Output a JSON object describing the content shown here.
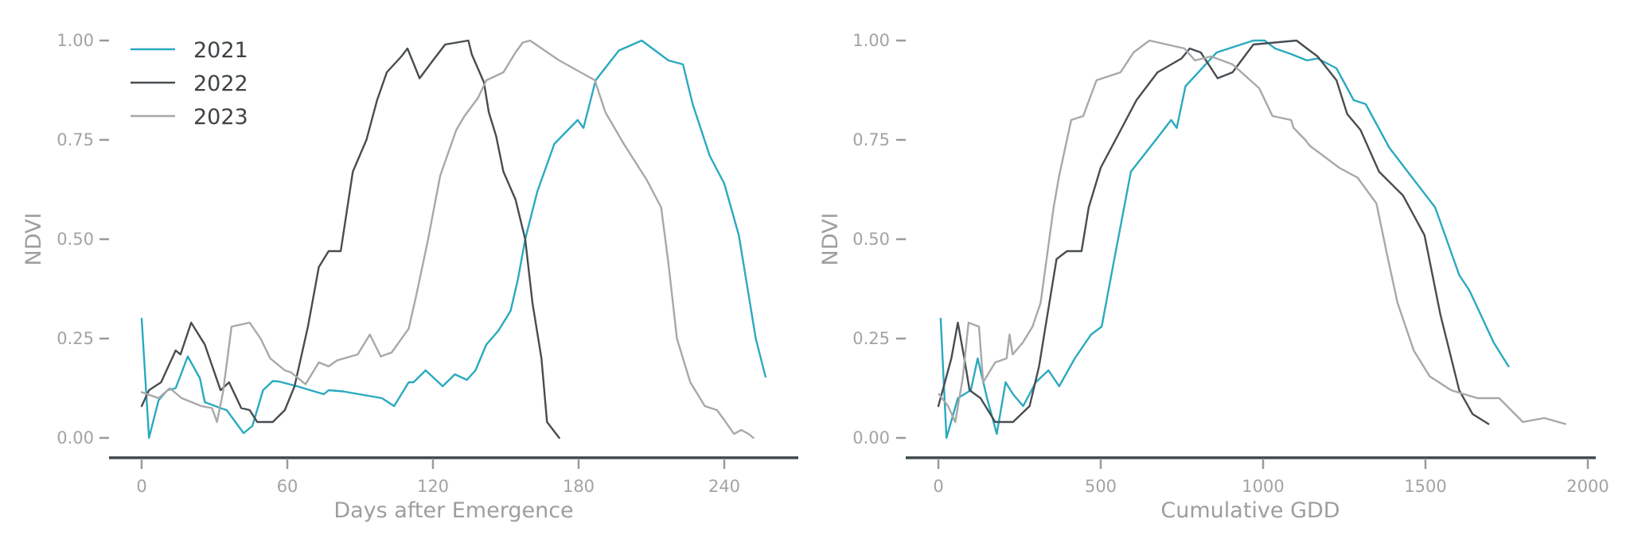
{
  "chart_data": [
    {
      "type": "line",
      "title": "",
      "xlabel": "Days after Emergence",
      "ylabel": "NDVI",
      "xlim": [
        -10,
        275
      ],
      "ylim": [
        0,
        1
      ],
      "xticks": [
        0,
        60,
        120,
        180,
        240
      ],
      "xtick_labels": [
        "0",
        "60",
        "120",
        "180",
        "240"
      ],
      "yticks": [
        0,
        0.25,
        0.5,
        0.75,
        1.0
      ],
      "ytick_labels": [
        "0.00",
        "0.25",
        "0.50",
        "0.75",
        "1.00"
      ],
      "grid": false,
      "legend": {
        "position": "upper left",
        "entries": [
          "2021",
          "2022",
          "2023"
        ]
      },
      "series": [
        {
          "name": "2021",
          "color": "#2aaabf",
          "x": [
            0,
            3,
            7,
            10.6,
            14,
            19,
            24,
            26,
            32.5,
            35,
            42,
            45.6,
            50,
            54,
            56.5,
            64,
            75,
            77,
            83,
            99,
            104,
            110,
            112,
            117,
            124,
            129,
            134,
            137.5,
            142,
            147,
            152,
            155,
            158,
            163,
            170,
            179.6,
            182,
            187,
            196.6,
            206,
            217,
            223,
            227,
            234,
            240,
            246,
            253,
            257
          ],
          "y": [
            0.3,
            0.0,
            0.095,
            0.12,
            0.125,
            0.205,
            0.15,
            0.09,
            0.075,
            0.07,
            0.012,
            0.03,
            0.12,
            0.143,
            0.142,
            0.13,
            0.11,
            0.12,
            0.117,
            0.1,
            0.08,
            0.14,
            0.14,
            0.17,
            0.13,
            0.16,
            0.146,
            0.17,
            0.235,
            0.27,
            0.32,
            0.4,
            0.5,
            0.62,
            0.74,
            0.8,
            0.78,
            0.9,
            0.975,
            1.0,
            0.95,
            0.94,
            0.84,
            0.71,
            0.64,
            0.51,
            0.25,
            0.154
          ]
        },
        {
          "name": "2022",
          "color": "#474d51",
          "x": [
            0,
            3,
            8,
            14,
            16,
            20.4,
            26,
            32.5,
            36,
            41,
            44.5,
            47.6,
            54,
            59,
            63,
            68.5,
            73,
            77,
            82,
            87,
            92.6,
            97,
            101,
            107,
            109.5,
            114.5,
            120,
            125,
            134.6,
            136,
            141,
            143,
            146,
            149,
            154,
            158,
            161,
            164.7,
            167,
            172
          ],
          "y": [
            0.08,
            0.12,
            0.14,
            0.22,
            0.21,
            0.29,
            0.235,
            0.12,
            0.14,
            0.075,
            0.07,
            0.04,
            0.04,
            0.07,
            0.13,
            0.28,
            0.43,
            0.47,
            0.47,
            0.67,
            0.75,
            0.85,
            0.92,
            0.96,
            0.98,
            0.905,
            0.95,
            0.99,
            1.0,
            0.965,
            0.895,
            0.82,
            0.76,
            0.67,
            0.6,
            0.5,
            0.34,
            0.2,
            0.04,
            0.0
          ]
        },
        {
          "name": "2023",
          "color": "#a8a8a8",
          "x": [
            0,
            7,
            11.6,
            16.5,
            24.6,
            29,
            31,
            33.5,
            37,
            44.5,
            49,
            53,
            59,
            61.5,
            67.5,
            73,
            77,
            80.5,
            89,
            94,
            98.5,
            103,
            110,
            113,
            118,
            123,
            129.6,
            133,
            138.5,
            142,
            149,
            154,
            157,
            160,
            172,
            186.7,
            191,
            198.6,
            208,
            214,
            217,
            220.5,
            226,
            232,
            237,
            240,
            244,
            247,
            250,
            252
          ],
          "y": [
            0.115,
            0.1,
            0.125,
            0.1,
            0.08,
            0.075,
            0.04,
            0.115,
            0.28,
            0.29,
            0.25,
            0.2,
            0.17,
            0.165,
            0.135,
            0.19,
            0.18,
            0.195,
            0.21,
            0.26,
            0.205,
            0.215,
            0.275,
            0.355,
            0.5,
            0.66,
            0.775,
            0.81,
            0.855,
            0.9,
            0.92,
            0.97,
            0.995,
            1.0,
            0.95,
            0.9,
            0.82,
            0.74,
            0.65,
            0.58,
            0.44,
            0.25,
            0.14,
            0.08,
            0.07,
            0.045,
            0.01,
            0.02,
            0.01,
            0.0
          ]
        }
      ]
    },
    {
      "type": "line",
      "title": "",
      "xlabel": "Cumulative GDD",
      "ylabel": "NDVI",
      "xlim": [
        -80,
        2070
      ],
      "ylim": [
        0,
        1
      ],
      "xticks": [
        0,
        500,
        1000,
        1500,
        2000
      ],
      "xtick_labels": [
        "0",
        "500",
        "1000",
        "1500",
        "2000"
      ],
      "yticks": [
        0,
        0.25,
        0.5,
        0.75,
        1.0
      ],
      "ytick_labels": [
        "0.00",
        "0.25",
        "0.50",
        "0.75",
        "1.00"
      ],
      "grid": false,
      "legend": null,
      "series": [
        {
          "name": "2021",
          "color": "#2aaabf",
          "x": [
            7,
            25,
            60,
            100,
            121,
            150,
            180,
            207,
            230,
            261,
            300,
            339,
            372,
            420,
            470,
            503,
            544,
            593,
            660,
            717,
            734,
            761,
            857,
            970,
            1005,
            1037,
            1086,
            1135,
            1168,
            1226,
            1279,
            1316,
            1389,
            1464,
            1530,
            1604,
            1636,
            1710,
            1756
          ],
          "y": [
            0.3,
            0.0,
            0.1,
            0.12,
            0.2,
            0.1,
            0.01,
            0.14,
            0.11,
            0.08,
            0.14,
            0.17,
            0.13,
            0.2,
            0.26,
            0.28,
            0.46,
            0.67,
            0.74,
            0.8,
            0.78,
            0.885,
            0.97,
            1.0,
            1.0,
            0.98,
            0.966,
            0.95,
            0.955,
            0.93,
            0.85,
            0.84,
            0.73,
            0.65,
            0.58,
            0.41,
            0.37,
            0.24,
            0.18
          ]
        },
        {
          "name": "2022",
          "color": "#474d51",
          "x": [
            0,
            20,
            40,
            60,
            80,
            96,
            130,
            175,
            230,
            281,
            310,
            330,
            364,
            396,
            441,
            463,
            500,
            552,
            610,
            675,
            749,
            774,
            808,
            860,
            906,
            970,
            1103,
            1135,
            1168,
            1226,
            1259,
            1300,
            1357,
            1431,
            1497,
            1546,
            1604,
            1645,
            1694
          ],
          "y": [
            0.08,
            0.14,
            0.2,
            0.29,
            0.2,
            0.12,
            0.1,
            0.04,
            0.04,
            0.08,
            0.18,
            0.28,
            0.45,
            0.47,
            0.47,
            0.58,
            0.68,
            0.76,
            0.85,
            0.92,
            0.955,
            0.98,
            0.97,
            0.905,
            0.92,
            0.99,
            1.0,
            0.98,
            0.96,
            0.9,
            0.815,
            0.775,
            0.67,
            0.61,
            0.51,
            0.31,
            0.12,
            0.06,
            0.035
          ]
        },
        {
          "name": "2023",
          "color": "#a8a8a8",
          "x": [
            2,
            30,
            52,
            75,
            93,
            125,
            138,
            175,
            210,
            219,
            229,
            260,
            290,
            315,
            355,
            372,
            409,
            446,
            487,
            561,
            601,
            650,
            758,
            790,
            840,
            906,
            988,
            1029,
            1086,
            1094,
            1130,
            1144,
            1234,
            1291,
            1349,
            1382,
            1414,
            1464,
            1513,
            1579,
            1660,
            1727,
            1800,
            1866,
            1931
          ],
          "y": [
            0.11,
            0.08,
            0.04,
            0.15,
            0.29,
            0.28,
            0.14,
            0.19,
            0.2,
            0.26,
            0.21,
            0.24,
            0.28,
            0.34,
            0.58,
            0.66,
            0.8,
            0.81,
            0.9,
            0.92,
            0.97,
            1.0,
            0.98,
            0.95,
            0.96,
            0.94,
            0.88,
            0.81,
            0.8,
            0.78,
            0.75,
            0.735,
            0.68,
            0.655,
            0.59,
            0.46,
            0.34,
            0.22,
            0.155,
            0.12,
            0.1,
            0.1,
            0.04,
            0.05,
            0.035
          ]
        }
      ]
    }
  ],
  "legend": {
    "items": [
      {
        "label": "2021",
        "color": "#2aaabf"
      },
      {
        "label": "2022",
        "color": "#474d51"
      },
      {
        "label": "2023",
        "color": "#a8a8a8"
      }
    ]
  },
  "panels": [
    {
      "xlabel": "Days after Emergence",
      "ylabel": "NDVI",
      "xtick_labels": [
        "0",
        "60",
        "120",
        "180",
        "240"
      ],
      "ytick_labels": [
        "0.00",
        "0.25",
        "0.50",
        "0.75",
        "1.00"
      ]
    },
    {
      "xlabel": "Cumulative GDD",
      "ylabel": "NDVI",
      "xtick_labels": [
        "0",
        "500",
        "1000",
        "1500",
        "2000"
      ],
      "ytick_labels": [
        "0.00",
        "0.25",
        "0.50",
        "0.75",
        "1.00"
      ]
    }
  ]
}
